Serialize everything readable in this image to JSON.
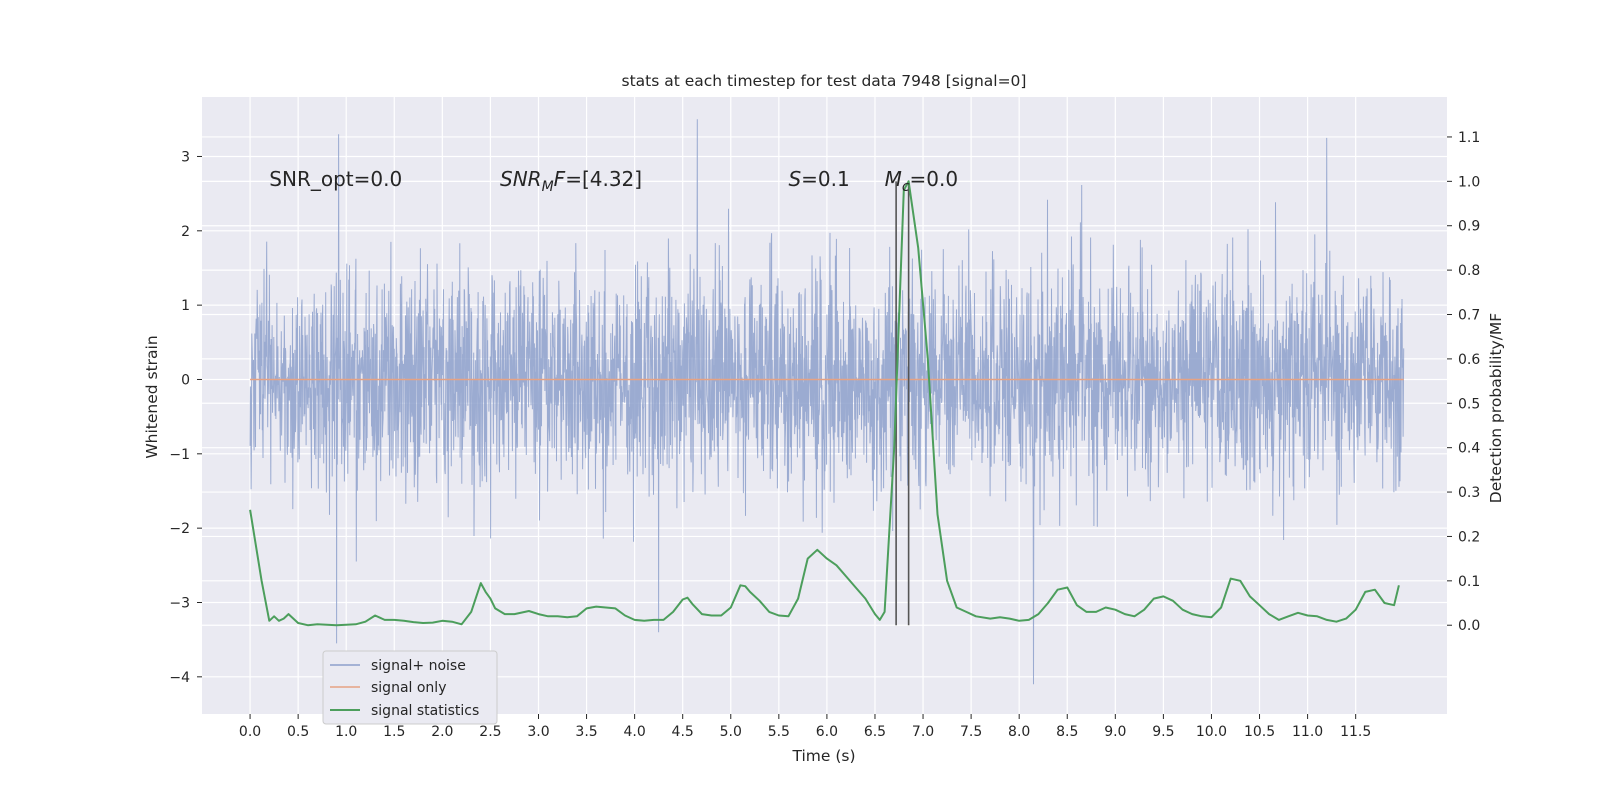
{
  "chart_data": {
    "type": "line",
    "title": "stats at each timestep for test data 7948 [signal=0]",
    "xlabel": "Time (s)",
    "ylabel_left": "Whitened strain",
    "ylabel_right": "Detection probability/MF",
    "xlim": [
      -0.5,
      12.45
    ],
    "ylim_left": [
      -4.5,
      3.8
    ],
    "ylim_right": [
      -0.2,
      1.19
    ],
    "x_ticks": [
      0.0,
      0.5,
      1.0,
      1.5,
      2.0,
      2.5,
      3.0,
      3.5,
      4.0,
      4.5,
      5.0,
      5.5,
      6.0,
      6.5,
      7.0,
      7.5,
      8.0,
      8.5,
      9.0,
      9.5,
      10.0,
      10.5,
      11.0,
      11.5
    ],
    "x_tick_labels": [
      "0.0",
      "0.5",
      "1.0",
      "1.5",
      "2.0",
      "2.5",
      "3.0",
      "3.5",
      "4.0",
      "4.5",
      "5.0",
      "5.5",
      "6.0",
      "6.5",
      "7.0",
      "7.5",
      "8.0",
      "8.5",
      "9.0",
      "9.5",
      "10.0",
      "10.5",
      "11.0",
      "11.5"
    ],
    "y_left_ticks": [
      3,
      2,
      1,
      0,
      -1,
      -2,
      -3,
      -4
    ],
    "y_left_tick_labels": [
      "3",
      "2",
      "1",
      "0",
      "−1",
      "−2",
      "−3",
      "−4"
    ],
    "y_right_ticks": [
      1.1,
      1.0,
      0.9,
      0.8,
      0.7,
      0.6,
      0.5,
      0.4,
      0.3,
      0.2,
      0.1,
      0.0
    ],
    "y_right_tick_labels": [
      "1.1",
      "1.0",
      "0.9",
      "0.8",
      "0.7",
      "0.6",
      "0.5",
      "0.4",
      "0.3",
      "0.2",
      "0.1",
      "0.0"
    ],
    "grid": true,
    "legend_position": "lower-left",
    "series": [
      {
        "name": "signal+ noise",
        "axis": "left",
        "color": "#8da0cb",
        "kind": "noise",
        "x_range": [
          0.0,
          12.0
        ],
        "typical_band": [
          -1.5,
          1.5
        ],
        "peaks_x": [
          0.92,
          4.65,
          11.2
        ],
        "peaks_y": [
          3.3,
          3.5,
          3.25
        ],
        "troughs_x": [
          0.9,
          4.25,
          8.15
        ],
        "troughs_y": [
          -3.55,
          -3.4,
          -4.1
        ]
      },
      {
        "name": "signal only",
        "axis": "left",
        "color": "#e6a283",
        "x": [
          0.0,
          12.0
        ],
        "y": [
          0.0,
          0.0
        ]
      },
      {
        "name": "signal statistics",
        "axis": "right",
        "color": "#4c9e5c",
        "x": [
          0.0,
          0.12,
          0.2,
          0.25,
          0.3,
          0.35,
          0.4,
          0.5,
          0.6,
          0.7,
          0.8,
          0.9,
          1.0,
          1.1,
          1.2,
          1.3,
          1.4,
          1.5,
          1.6,
          1.7,
          1.8,
          1.9,
          2.0,
          2.1,
          2.2,
          2.3,
          2.4,
          2.45,
          2.5,
          2.55,
          2.65,
          2.75,
          2.9,
          3.0,
          3.1,
          3.2,
          3.3,
          3.4,
          3.5,
          3.6,
          3.7,
          3.8,
          3.9,
          4.0,
          4.1,
          4.2,
          4.3,
          4.4,
          4.5,
          4.55,
          4.6,
          4.7,
          4.8,
          4.9,
          5.0,
          5.1,
          5.15,
          5.2,
          5.3,
          5.4,
          5.5,
          5.6,
          5.7,
          5.8,
          5.9,
          6.0,
          6.1,
          6.2,
          6.3,
          6.4,
          6.5,
          6.55,
          6.6,
          6.7,
          6.8,
          6.85,
          6.95,
          7.05,
          7.15,
          7.25,
          7.35,
          7.45,
          7.55,
          7.7,
          7.8,
          7.9,
          8.0,
          8.1,
          8.2,
          8.3,
          8.4,
          8.5,
          8.6,
          8.7,
          8.8,
          8.9,
          9.0,
          9.1,
          9.2,
          9.3,
          9.4,
          9.5,
          9.6,
          9.7,
          9.8,
          9.9,
          10.0,
          10.1,
          10.2,
          10.3,
          10.4,
          10.5,
          10.6,
          10.7,
          10.8,
          10.9,
          11.0,
          11.1,
          11.2,
          11.3,
          11.4,
          11.5,
          11.6,
          11.7,
          11.8,
          11.9,
          11.95
        ],
        "y": [
          0.26,
          0.1,
          0.01,
          0.02,
          0.01,
          0.015,
          0.025,
          0.005,
          0.0,
          0.002,
          0.001,
          0.0,
          0.001,
          0.002,
          0.008,
          0.022,
          0.012,
          0.012,
          0.01,
          0.007,
          0.005,
          0.006,
          0.01,
          0.008,
          0.002,
          0.03,
          0.095,
          0.075,
          0.06,
          0.038,
          0.025,
          0.025,
          0.032,
          0.025,
          0.02,
          0.02,
          0.018,
          0.02,
          0.038,
          0.042,
          0.04,
          0.038,
          0.022,
          0.012,
          0.01,
          0.012,
          0.012,
          0.03,
          0.058,
          0.062,
          0.048,
          0.025,
          0.022,
          0.022,
          0.04,
          0.09,
          0.088,
          0.075,
          0.055,
          0.03,
          0.022,
          0.02,
          0.06,
          0.15,
          0.17,
          0.15,
          0.135,
          0.11,
          0.085,
          0.06,
          0.025,
          0.012,
          0.03,
          0.4,
          0.98,
          1.0,
          0.85,
          0.6,
          0.25,
          0.1,
          0.04,
          0.03,
          0.02,
          0.015,
          0.018,
          0.015,
          0.01,
          0.012,
          0.025,
          0.05,
          0.08,
          0.085,
          0.045,
          0.03,
          0.03,
          0.04,
          0.035,
          0.025,
          0.02,
          0.035,
          0.06,
          0.065,
          0.055,
          0.035,
          0.025,
          0.02,
          0.018,
          0.04,
          0.105,
          0.1,
          0.065,
          0.045,
          0.025,
          0.012,
          0.02,
          0.028,
          0.022,
          0.02,
          0.012,
          0.008,
          0.015,
          0.035,
          0.075,
          0.08,
          0.05,
          0.045,
          0.09
        ]
      }
    ],
    "vertical_lines": {
      "color": "#555555",
      "axis": "right",
      "x": [
        6.72,
        6.85
      ],
      "y_range": [
        0.0,
        1.0
      ]
    },
    "annotations": [
      {
        "kind": "plain",
        "text": "SNR_opt=0.0",
        "x": 0.2,
        "y": 2.7
      },
      {
        "kind": "math",
        "parts": [
          {
            "t": "SNR",
            "i": true
          },
          {
            "t": "M",
            "i": true,
            "sub": true
          },
          {
            "t": "F",
            "i": true
          },
          {
            "t": "=[4.32]",
            "i": false
          }
        ],
        "x": 2.6,
        "y": 2.7
      },
      {
        "kind": "math",
        "parts": [
          {
            "t": "S",
            "i": true
          },
          {
            "t": "=0.1",
            "i": false
          }
        ],
        "x": 5.6,
        "y": 2.7
      },
      {
        "kind": "math",
        "parts": [
          {
            "t": "M",
            "i": true
          },
          {
            "t": "c",
            "i": true,
            "sub": true
          },
          {
            "t": "=0.0",
            "i": false
          }
        ],
        "x": 6.6,
        "y": 2.7
      }
    ]
  }
}
